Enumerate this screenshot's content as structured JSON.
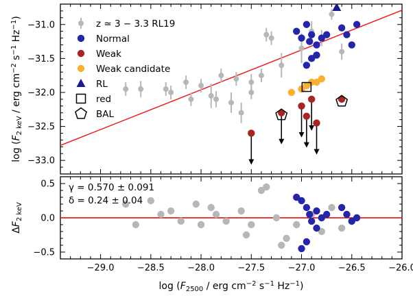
{
  "chart_data": [
    {
      "type": "scatter",
      "panel": "top",
      "xlabel": "log (F_2500 / erg cm^-2 s^-1 Hz^-1)",
      "ylabel": "log (F_2 keV / erg cm^-2 s^-1 Hz^-1)",
      "xlim": [
        -29.4,
        -26.0
      ],
      "ylim": [
        -33.2,
        -30.7
      ],
      "x_ticks": [
        -29.0,
        -28.5,
        -28.0,
        -27.5,
        -27.0,
        -26.5,
        -26.0
      ],
      "x_tick_labels": [
        "−29.0",
        "−28.5",
        "−28.0",
        "−27.5",
        "−27.0",
        "−26.5",
        "−26.0"
      ],
      "y_ticks": [
        -33.0,
        -32.5,
        -32.0,
        -31.5,
        -31.0
      ],
      "y_tick_labels": [
        "−33.0",
        "−32.5",
        "−32.0",
        "−31.5",
        "−31.0"
      ],
      "fit_line": {
        "color": "#ee1c1c",
        "points": [
          [
            -29.4,
            -32.78
          ],
          [
            -26.0,
            -30.79
          ]
        ]
      },
      "legend": {
        "placement": "top-left",
        "entries": [
          {
            "key": "rl19",
            "label": "z ≃ 3 − 3.3 RL19",
            "marker": "circle-errorbar",
            "color": "#b7b7b7"
          },
          {
            "key": "normal",
            "label": "Normal",
            "marker": "circle",
            "color": "#2525a8"
          },
          {
            "key": "weak",
            "label": "Weak",
            "marker": "circle",
            "color": "#a82525"
          },
          {
            "key": "weak_cand",
            "label": "Weak candidate",
            "marker": "circle",
            "color": "#f8b133"
          },
          {
            "key": "rl",
            "label": "RL",
            "marker": "triangle",
            "color": "#1a1a8a"
          },
          {
            "key": "red",
            "label": "red",
            "marker": "square-open",
            "color": "#000000"
          },
          {
            "key": "bal",
            "label": "BAL",
            "marker": "pentagon-open",
            "color": "#000000"
          }
        ]
      },
      "series": [
        {
          "name": "z ≃ 3 − 3.3 RL19",
          "color": "#b7b7b7",
          "points": [
            {
              "x": -28.75,
              "y": -31.95,
              "err": 0.1
            },
            {
              "x": -28.6,
              "y": -31.95,
              "err": 0.12
            },
            {
              "x": -28.35,
              "y": -31.95,
              "err": 0.1
            },
            {
              "x": -28.3,
              "y": -32.0,
              "err": 0.1
            },
            {
              "x": -28.15,
              "y": -31.85,
              "err": 0.1
            },
            {
              "x": -28.1,
              "y": -32.1,
              "err": 0.1
            },
            {
              "x": -28.0,
              "y": -31.9,
              "err": 0.1
            },
            {
              "x": -27.9,
              "y": -32.05,
              "err": 0.18
            },
            {
              "x": -27.85,
              "y": -32.1,
              "err": 0.12
            },
            {
              "x": -27.8,
              "y": -31.75,
              "err": 0.1
            },
            {
              "x": -27.7,
              "y": -32.15,
              "err": 0.15
            },
            {
              "x": -27.65,
              "y": -31.8,
              "err": 0.1
            },
            {
              "x": -27.6,
              "y": -32.3,
              "err": 0.15
            },
            {
              "x": -27.5,
              "y": -31.85,
              "err": 0.12
            },
            {
              "x": -27.5,
              "y": -32.0,
              "err": 0.1
            },
            {
              "x": -27.4,
              "y": -31.75,
              "err": 0.1
            },
            {
              "x": -27.35,
              "y": -31.15,
              "err": 0.1
            },
            {
              "x": -27.3,
              "y": -31.2,
              "err": 0.1
            },
            {
              "x": -27.2,
              "y": -31.6,
              "err": 0.18
            },
            {
              "x": -27.0,
              "y": -31.35,
              "err": 0.22
            },
            {
              "x": -26.9,
              "y": -31.1,
              "err": 0.15
            },
            {
              "x": -26.8,
              "y": -31.2,
              "err": 0.12
            },
            {
              "x": -26.7,
              "y": -30.85,
              "err": 0.08
            },
            {
              "x": -26.6,
              "y": -31.4,
              "err": 0.12
            }
          ]
        },
        {
          "name": "Normal",
          "color": "#2525a8",
          "points": [
            {
              "x": -27.05,
              "y": -31.1
            },
            {
              "x": -27.0,
              "y": -31.2
            },
            {
              "x": -26.95,
              "y": -31.0
            },
            {
              "x": -26.92,
              "y": -31.25
            },
            {
              "x": -26.9,
              "y": -31.15
            },
            {
              "x": -26.85,
              "y": -31.3
            },
            {
              "x": -26.85,
              "y": -31.45
            },
            {
              "x": -26.8,
              "y": -31.2
            },
            {
              "x": -26.75,
              "y": -31.15
            },
            {
              "x": -26.6,
              "y": -31.05
            },
            {
              "x": -26.55,
              "y": -31.15
            },
            {
              "x": -26.5,
              "y": -31.3
            },
            {
              "x": -26.45,
              "y": -31.0
            },
            {
              "x": -26.9,
              "y": -31.5
            },
            {
              "x": -26.95,
              "y": -31.6
            }
          ]
        },
        {
          "name": "Weak",
          "color": "#a82525",
          "points": [
            {
              "x": -27.5,
              "y": -32.6,
              "upper_limit": true
            },
            {
              "x": -27.2,
              "y": -32.3,
              "upper_limit": true
            },
            {
              "x": -27.0,
              "y": -32.2,
              "upper_limit": true
            },
            {
              "x": -26.95,
              "y": -32.35,
              "upper_limit": true
            },
            {
              "x": -26.9,
              "y": -32.1,
              "upper_limit": true
            },
            {
              "x": -26.85,
              "y": -32.45,
              "upper_limit": true
            },
            {
              "x": -26.6,
              "y": -32.1
            }
          ]
        },
        {
          "name": "Weak candidate",
          "color": "#f8b133",
          "points": [
            {
              "x": -27.1,
              "y": -32.0
            },
            {
              "x": -27.0,
              "y": -31.95
            },
            {
              "x": -26.95,
              "y": -31.9
            },
            {
              "x": -26.9,
              "y": -31.85
            },
            {
              "x": -26.85,
              "y": -31.85
            },
            {
              "x": -26.8,
              "y": -31.8
            }
          ]
        },
        {
          "name": "RL",
          "color": "#1a1a8a",
          "points": [
            {
              "x": -26.65,
              "y": -30.75
            }
          ]
        },
        {
          "name": "red",
          "color": "#000000",
          "points": [
            {
              "x": -26.95,
              "y": -31.92
            }
          ]
        },
        {
          "name": "BAL",
          "color": "#000000",
          "points": [
            {
              "x": -27.2,
              "y": -32.33
            },
            {
              "x": -26.6,
              "y": -32.13
            }
          ]
        }
      ]
    },
    {
      "type": "scatter",
      "panel": "bottom",
      "xlabel": "log (F_2500 / erg cm^-2 s^-1 Hz^-1)",
      "ylabel": "ΔF_2 keV",
      "xlim": [
        -29.4,
        -26.0
      ],
      "ylim": [
        -0.6,
        0.6
      ],
      "y_ticks": [
        0.5,
        0.0,
        -0.5
      ],
      "y_tick_labels": [
        "0.5",
        "0.0",
        "−0.5"
      ],
      "zero_line": {
        "y": 0.0,
        "color": "#ee1c1c"
      },
      "annotations": [
        "γ = 0.570 ± 0.091",
        "δ = 0.24 ± 0.04"
      ],
      "series": [
        {
          "name": "z ≃ 3 − 3.3 RL19",
          "color": "#b7b7b7",
          "points": [
            {
              "x": -28.75,
              "y": 0.2
            },
            {
              "x": -28.5,
              "y": 0.25
            },
            {
              "x": -28.4,
              "y": 0.05
            },
            {
              "x": -28.2,
              "y": -0.05
            },
            {
              "x": -28.05,
              "y": 0.2
            },
            {
              "x": -28.0,
              "y": -0.1
            },
            {
              "x": -27.9,
              "y": 0.15
            },
            {
              "x": -27.85,
              "y": 0.05
            },
            {
              "x": -27.75,
              "y": -0.05
            },
            {
              "x": -27.6,
              "y": 0.1
            },
            {
              "x": -27.55,
              "y": -0.25
            },
            {
              "x": -27.5,
              "y": -0.1
            },
            {
              "x": -27.4,
              "y": 0.4
            },
            {
              "x": -27.35,
              "y": 0.45
            },
            {
              "x": -27.25,
              "y": 0.0
            },
            {
              "x": -27.15,
              "y": -0.3
            },
            {
              "x": -27.05,
              "y": -0.1
            },
            {
              "x": -26.9,
              "y": 0.05
            },
            {
              "x": -26.8,
              "y": -0.2
            },
            {
              "x": -26.7,
              "y": 0.15
            },
            {
              "x": -26.6,
              "y": -0.15
            },
            {
              "x": -28.65,
              "y": -0.1
            },
            {
              "x": -28.3,
              "y": 0.1
            },
            {
              "x": -27.2,
              "y": -0.4
            }
          ]
        },
        {
          "name": "Normal",
          "color": "#2525a8",
          "points": [
            {
              "x": -27.05,
              "y": 0.3
            },
            {
              "x": -27.0,
              "y": 0.25
            },
            {
              "x": -26.95,
              "y": 0.15
            },
            {
              "x": -26.92,
              "y": 0.05
            },
            {
              "x": -26.9,
              "y": -0.05
            },
            {
              "x": -26.85,
              "y": 0.1
            },
            {
              "x": -26.85,
              "y": -0.15
            },
            {
              "x": -26.8,
              "y": 0.0
            },
            {
              "x": -26.75,
              "y": 0.05
            },
            {
              "x": -26.6,
              "y": 0.15
            },
            {
              "x": -26.55,
              "y": 0.05
            },
            {
              "x": -26.5,
              "y": -0.05
            },
            {
              "x": -26.45,
              "y": 0.0
            },
            {
              "x": -27.0,
              "y": -0.45
            },
            {
              "x": -26.95,
              "y": -0.35
            }
          ]
        }
      ]
    }
  ]
}
